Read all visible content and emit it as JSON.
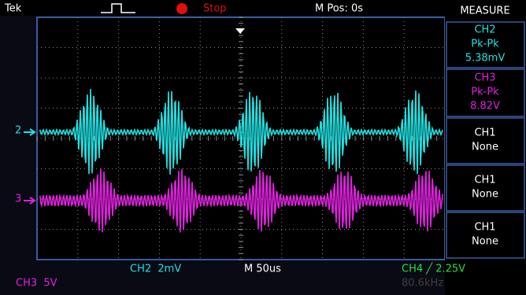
{
  "header": {
    "brand": "Tek",
    "status": "Stop",
    "position": "M Pos: 0s"
  },
  "measure": {
    "title": "MEASURE",
    "items": [
      {
        "channel": "CH2",
        "label": "Pk-Pk",
        "value": "5.38mV"
      },
      {
        "channel": "CH3",
        "label": "Pk-Pk",
        "value": "8.82V"
      },
      {
        "channel": "CH1",
        "label": "None"
      },
      {
        "channel": "CH1",
        "label": "None"
      },
      {
        "channel": "CH1",
        "label": "None"
      }
    ]
  },
  "markers": [
    "2",
    "3"
  ],
  "footer": {
    "ch2_scale": "CH2  2mV",
    "timebase": "M 50us",
    "trigger": "CH4 ╱ 2.25V",
    "ch3_scale": "CH3  5V",
    "frequency": "80.6kHz"
  }
}
